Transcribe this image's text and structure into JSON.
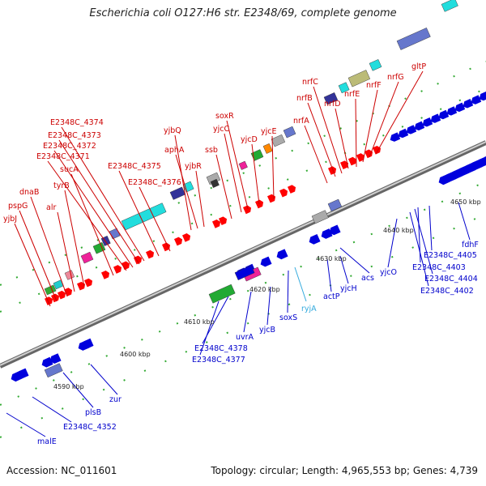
{
  "title": "Escherichia coli O127:H6 str. E2348/69, complete genome",
  "footer": {
    "accession": "Accession: NC_011601",
    "summary": "Topology: circular; Length: 4,965,553 bp; Genes: 4,739"
  },
  "colors": {
    "forward_label": "#cc0000",
    "reverse_label": "#0000cc",
    "rna_label": "#33aadd",
    "forward_gene": "#ff0000",
    "reverse_gene": "#0000dd",
    "backbone": "#888888"
  },
  "scale_ticks": [
    "4590 kbp",
    "4600 kbp",
    "4610 kbp",
    "4620 kbp",
    "4630 kbp",
    "4640 kbp",
    "4650 kbp"
  ],
  "forward_labels": [
    "yjbJ",
    "pspG",
    "dnaB",
    "alr",
    "tyrB",
    "sucA",
    "E2348C_4371",
    "E2348C_4372",
    "E2348C_4373",
    "E2348C_4374",
    "E2348C_4375",
    "E2348C_4376",
    "yjbR",
    "aphA",
    "yjbQ",
    "ssb",
    "yjcC",
    "soxR",
    "yjcD",
    "yjcE",
    "nrfA",
    "nrfB",
    "nrfC",
    "nrfD",
    "nrfE",
    "nrfF",
    "nrfG",
    "gltP"
  ],
  "reverse_labels": [
    "malE",
    "E2348C_4352",
    "plsB",
    "zur",
    "E2348C_4377",
    "E2348C_4378",
    "uvrA",
    "yjcB",
    "soxS",
    "actP",
    "yjcH",
    "acs",
    "yjcO",
    "E2348C_4402",
    "E2348C_4404",
    "E2348C_4403",
    "E2348C_4405",
    "fdhF"
  ],
  "rna_labels": [
    "ryjA"
  ]
}
